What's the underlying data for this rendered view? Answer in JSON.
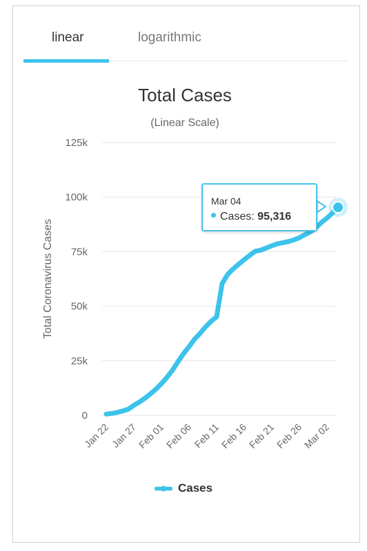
{
  "tabs": [
    {
      "label": "linear",
      "active": true
    },
    {
      "label": "logarithmic",
      "active": false
    }
  ],
  "colors": {
    "series": "#3cc3ec",
    "grid": "#e6e6e6",
    "axis_text": "#666666"
  },
  "tooltip": {
    "date": "Mar 04",
    "series": "Cases",
    "value": "95,316"
  },
  "chart_data": {
    "type": "line",
    "title": "Total Cases",
    "subtitle": "(Linear Scale)",
    "ylabel": "Total Coronavirus Cases",
    "xlabel": "",
    "ylim": [
      0,
      125000
    ],
    "yticks": [
      0,
      25000,
      50000,
      75000,
      100000,
      125000
    ],
    "ytick_labels": [
      "0",
      "25k",
      "50k",
      "75k",
      "100k",
      "125k"
    ],
    "xtick_labels": [
      "Jan 22",
      "Jan 27",
      "Feb 01",
      "Feb 06",
      "Feb 11",
      "Feb 16",
      "Feb 21",
      "Feb 26",
      "Mar 02"
    ],
    "x": [
      "Jan 22",
      "Jan 23",
      "Jan 24",
      "Jan 25",
      "Jan 26",
      "Jan 27",
      "Jan 28",
      "Jan 29",
      "Jan 30",
      "Jan 31",
      "Feb 01",
      "Feb 02",
      "Feb 03",
      "Feb 04",
      "Feb 05",
      "Feb 06",
      "Feb 07",
      "Feb 08",
      "Feb 09",
      "Feb 10",
      "Feb 11",
      "Feb 12",
      "Feb 13",
      "Feb 14",
      "Feb 15",
      "Feb 16",
      "Feb 17",
      "Feb 18",
      "Feb 19",
      "Feb 20",
      "Feb 21",
      "Feb 22",
      "Feb 23",
      "Feb 24",
      "Feb 25",
      "Feb 26",
      "Feb 27",
      "Feb 28",
      "Feb 29",
      "Mar 01",
      "Mar 02",
      "Mar 03",
      "Mar 04"
    ],
    "series": [
      {
        "name": "Cases",
        "values": [
          580,
          845,
          1320,
          2010,
          2800,
          4580,
          6060,
          7820,
          9830,
          11950,
          14560,
          17390,
          20630,
          24550,
          28280,
          31480,
          34880,
          37560,
          40560,
          43100,
          45170,
          60380,
          64540,
          67100,
          69260,
          71330,
          73330,
          75200,
          75700,
          76680,
          77700,
          78580,
          79100,
          79640,
          80400,
          81400,
          82800,
          84100,
          86000,
          88400,
          90400,
          92800,
          95316
        ]
      }
    ],
    "highlight": {
      "x": "Mar 04",
      "y": 95316
    },
    "grid": true,
    "legend": "bottom-center"
  }
}
